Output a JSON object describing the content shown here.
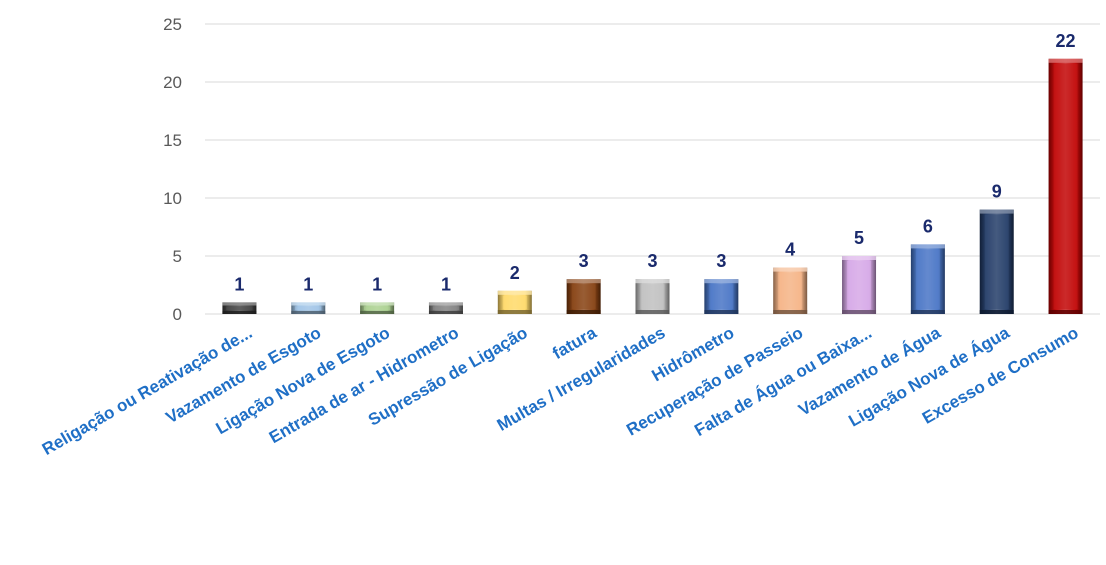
{
  "chart_data": {
    "type": "bar",
    "title": "",
    "xlabel": "",
    "ylabel": "",
    "ylim": [
      0,
      25
    ],
    "yticks": [
      0,
      5,
      10,
      15,
      20,
      25
    ],
    "grid": true,
    "legend": "none",
    "categories": [
      "Religação ou Reativação de...",
      "Vazamento de Esgoto",
      "Ligação Nova de Esgoto",
      "Entrada de ar - Hidrometro",
      "Supressão de Ligação",
      "fatura",
      "Multas / Irregularidades",
      "Hidrômetro",
      "Recuperação de Passeio",
      "Falta de Água ou Baixa...",
      "Vazamento de Água",
      "Ligação Nova de Água",
      "Excesso de Consumo"
    ],
    "values": [
      1,
      1,
      1,
      1,
      2,
      3,
      3,
      3,
      4,
      5,
      6,
      9,
      22
    ],
    "colors": [
      "#3f3f3f",
      "#9dc3e6",
      "#a9d08e",
      "#7f7f7f",
      "#ffd966",
      "#843c0c",
      "#bfbfbf",
      "#4472c4",
      "#f4b183",
      "#d5a6e6",
      "#4472c4",
      "#1f3864",
      "#c00000"
    ]
  }
}
